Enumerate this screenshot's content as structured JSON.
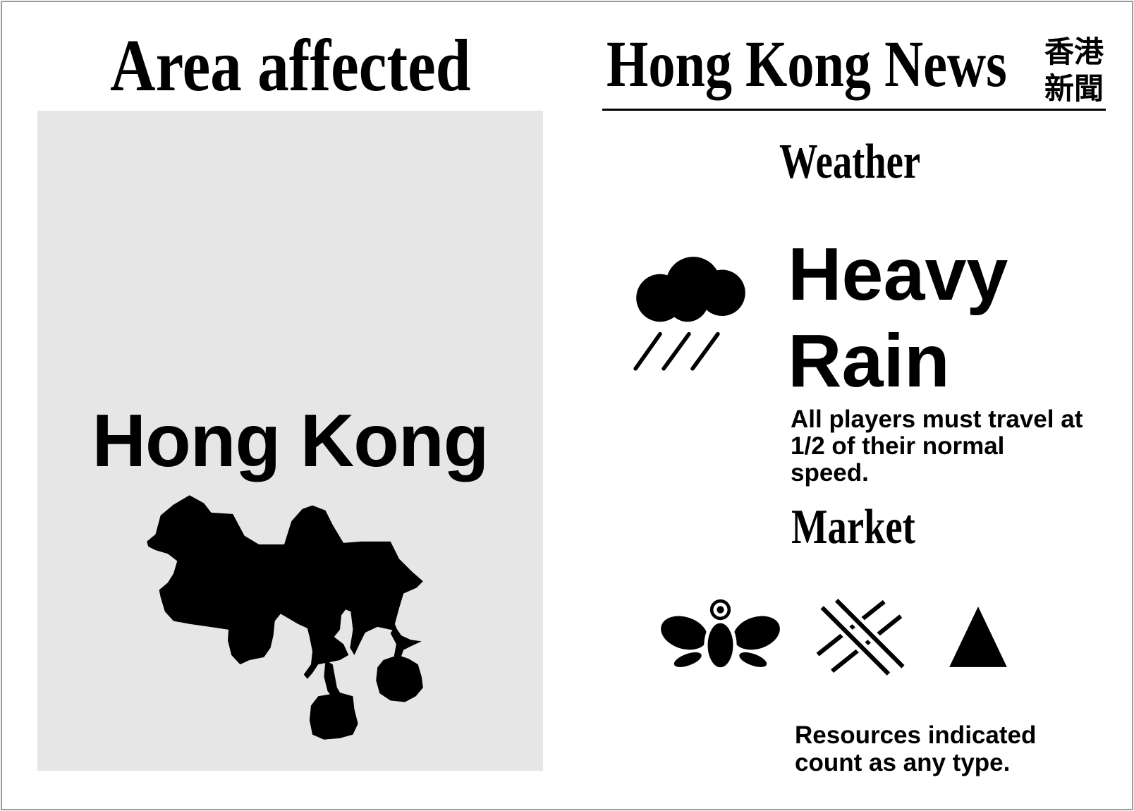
{
  "card": {
    "area_heading": "Area affected",
    "area_name": "Hong Kong",
    "map_icon": "hong-kong-map-silhouette",
    "news_title": "Hong Kong News",
    "news_title_chinese": [
      "香港",
      "新聞"
    ],
    "weather": {
      "heading": "Weather",
      "icon": "rain-cloud-icon",
      "condition_lines": [
        "Heavy",
        "Rain"
      ],
      "effect_lines": [
        "All players must travel at",
        "1/2 of their normal",
        "speed."
      ]
    },
    "market": {
      "heading": "Market",
      "resource_icons": [
        "moth-icon",
        "crosshatch-icon",
        "triangle-icon"
      ],
      "effect_lines": [
        "Resources indicated",
        "count as any type."
      ]
    }
  },
  "colors": {
    "ink": "#000000",
    "panel": "#e6e6e6",
    "border": "#9a9a9a",
    "background": "#ffffff"
  }
}
